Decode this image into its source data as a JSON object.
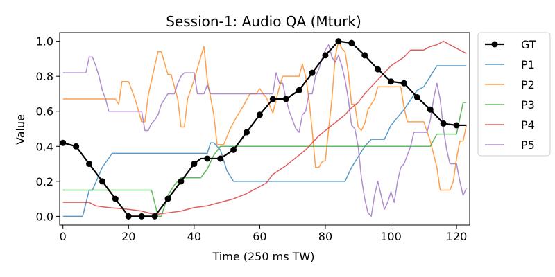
{
  "chart_data": {
    "type": "line",
    "title": "Session-1: Audio QA (Mturk)",
    "xlabel": "Time (250 ms TW)",
    "ylabel": "Value",
    "xlim": [
      -1,
      124
    ],
    "ylim": [
      -0.05,
      1.05
    ],
    "xticks": [
      0,
      20,
      40,
      60,
      80,
      100,
      120
    ],
    "yticks": [
      0.0,
      0.2,
      0.4,
      0.6,
      0.8,
      1.0
    ],
    "xtick_labels": [
      "0",
      "20",
      "40",
      "60",
      "80",
      "100",
      "120"
    ],
    "ytick_labels": [
      "0.0",
      "0.2",
      "0.4",
      "0.6",
      "0.8",
      "1.0"
    ],
    "grid": false,
    "legend_position": "outside-right",
    "series": [
      {
        "name": "GT",
        "color": "#000000",
        "markers": true,
        "points": [
          [
            0,
            0.42
          ],
          [
            4,
            0.4
          ],
          [
            8,
            0.3
          ],
          [
            12,
            0.2
          ],
          [
            16,
            0.1
          ],
          [
            20,
            0.0
          ],
          [
            24,
            0.0
          ],
          [
            28,
            0.0
          ],
          [
            32,
            0.1
          ],
          [
            36,
            0.2
          ],
          [
            40,
            0.3
          ],
          [
            42,
            0.33
          ],
          [
            44,
            0.33
          ],
          [
            48,
            0.33
          ],
          [
            52,
            0.38
          ],
          [
            56,
            0.48
          ],
          [
            60,
            0.58
          ],
          [
            64,
            0.67
          ],
          [
            68,
            0.67
          ],
          [
            72,
            0.72
          ],
          [
            76,
            0.82
          ],
          [
            80,
            0.92
          ],
          [
            84,
            1.0
          ],
          [
            88,
            0.99
          ],
          [
            92,
            0.92
          ],
          [
            96,
            0.84
          ],
          [
            100,
            0.77
          ],
          [
            104,
            0.76
          ],
          [
            108,
            0.68
          ],
          [
            112,
            0.61
          ],
          [
            116,
            0.53
          ],
          [
            120,
            0.52
          ],
          [
            123,
            0.52
          ]
        ],
        "marker_x": [
          0,
          4,
          8,
          12,
          16,
          20,
          24,
          28,
          32,
          36,
          40,
          44,
          48,
          52,
          56,
          60,
          64,
          68,
          72,
          76,
          80,
          84,
          88,
          92,
          96,
          100,
          104,
          108,
          112,
          116,
          120
        ]
      },
      {
        "name": "P1",
        "color": "#1f77b4",
        "markers": false,
        "points": [
          [
            0,
            0.0
          ],
          [
            6,
            0.0
          ],
          [
            8,
            0.15
          ],
          [
            9,
            0.15
          ],
          [
            12,
            0.28
          ],
          [
            15,
            0.36
          ],
          [
            30,
            0.36
          ],
          [
            44,
            0.36
          ],
          [
            45,
            0.42
          ],
          [
            46,
            0.42
          ],
          [
            48,
            0.38
          ],
          [
            50,
            0.26
          ],
          [
            52,
            0.2
          ],
          [
            70,
            0.2
          ],
          [
            80,
            0.2
          ],
          [
            86,
            0.2
          ],
          [
            88,
            0.28
          ],
          [
            92,
            0.4
          ],
          [
            94,
            0.44
          ],
          [
            98,
            0.44
          ],
          [
            100,
            0.52
          ],
          [
            104,
            0.61
          ],
          [
            108,
            0.72
          ],
          [
            110,
            0.74
          ],
          [
            112,
            0.8
          ],
          [
            114,
            0.86
          ],
          [
            123,
            0.86
          ]
        ]
      },
      {
        "name": "P2",
        "color": "#ff7f0e",
        "markers": false,
        "points": [
          [
            0,
            0.67
          ],
          [
            14,
            0.67
          ],
          [
            16,
            0.67
          ],
          [
            17,
            0.64
          ],
          [
            18,
            0.77
          ],
          [
            20,
            0.77
          ],
          [
            22,
            0.67
          ],
          [
            24,
            0.54
          ],
          [
            25,
            0.54
          ],
          [
            26,
            0.69
          ],
          [
            28,
            0.86
          ],
          [
            29,
            0.94
          ],
          [
            30,
            0.94
          ],
          [
            32,
            0.81
          ],
          [
            33,
            0.81
          ],
          [
            35,
            0.67
          ],
          [
            36,
            0.51
          ],
          [
            37,
            0.51
          ],
          [
            38,
            0.67
          ],
          [
            40,
            0.78
          ],
          [
            42,
            0.91
          ],
          [
            43,
            0.97
          ],
          [
            44,
            0.78
          ],
          [
            46,
            0.58
          ],
          [
            47,
            0.41
          ],
          [
            49,
            0.41
          ],
          [
            51,
            0.5
          ],
          [
            53,
            0.57
          ],
          [
            55,
            0.63
          ],
          [
            57,
            0.7
          ],
          [
            59,
            0.7
          ],
          [
            60,
            0.73
          ],
          [
            61,
            0.7
          ],
          [
            62,
            0.68
          ],
          [
            64,
            0.59
          ],
          [
            66,
            0.74
          ],
          [
            67,
            0.8
          ],
          [
            72,
            0.8
          ],
          [
            73,
            0.87
          ],
          [
            74,
            0.8
          ],
          [
            75,
            0.67
          ],
          [
            76,
            0.49
          ],
          [
            77,
            0.28
          ],
          [
            78,
            0.28
          ],
          [
            79,
            0.31
          ],
          [
            80,
            0.32
          ],
          [
            82,
            0.67
          ],
          [
            83,
            0.91
          ],
          [
            84,
            1.0
          ],
          [
            85,
            0.96
          ],
          [
            86,
            0.94
          ],
          [
            87,
            0.82
          ],
          [
            88,
            0.64
          ],
          [
            89,
            0.64
          ],
          [
            90,
            0.51
          ],
          [
            91,
            0.49
          ],
          [
            92,
            0.53
          ],
          [
            93,
            0.61
          ],
          [
            95,
            0.67
          ],
          [
            96,
            0.74
          ],
          [
            102,
            0.74
          ],
          [
            103,
            0.74
          ],
          [
            104,
            0.62
          ],
          [
            105,
            0.54
          ],
          [
            106,
            0.54
          ],
          [
            108,
            0.54
          ],
          [
            110,
            0.54
          ],
          [
            112,
            0.43
          ],
          [
            114,
            0.28
          ],
          [
            115,
            0.15
          ],
          [
            118,
            0.15
          ],
          [
            119,
            0.2
          ],
          [
            120,
            0.33
          ],
          [
            121,
            0.43
          ],
          [
            122,
            0.43
          ],
          [
            123,
            0.52
          ]
        ]
      },
      {
        "name": "P3",
        "color": "#2ca02c",
        "markers": false,
        "points": [
          [
            0,
            0.15
          ],
          [
            27,
            0.15
          ],
          [
            29,
            0.0
          ],
          [
            30,
            0.0
          ],
          [
            32,
            0.12
          ],
          [
            34,
            0.18
          ],
          [
            36,
            0.22
          ],
          [
            38,
            0.22
          ],
          [
            42,
            0.22
          ],
          [
            44,
            0.27
          ],
          [
            46,
            0.35
          ],
          [
            48,
            0.4
          ],
          [
            60,
            0.4
          ],
          [
            80,
            0.4
          ],
          [
            100,
            0.4
          ],
          [
            112,
            0.4
          ],
          [
            114,
            0.47
          ],
          [
            120,
            0.47
          ],
          [
            122,
            0.65
          ],
          [
            123,
            0.65
          ]
        ]
      },
      {
        "name": "P4",
        "color": "#d62728",
        "markers": false,
        "points": [
          [
            0,
            0.08
          ],
          [
            8,
            0.08
          ],
          [
            10,
            0.06
          ],
          [
            14,
            0.05
          ],
          [
            20,
            0.04
          ],
          [
            24,
            0.03
          ],
          [
            28,
            0.01
          ],
          [
            32,
            0.02
          ],
          [
            36,
            0.03
          ],
          [
            40,
            0.05
          ],
          [
            44,
            0.06
          ],
          [
            48,
            0.08
          ],
          [
            52,
            0.1
          ],
          [
            56,
            0.13
          ],
          [
            58,
            0.15
          ],
          [
            60,
            0.17
          ],
          [
            62,
            0.19
          ],
          [
            64,
            0.24
          ],
          [
            68,
            0.29
          ],
          [
            72,
            0.35
          ],
          [
            74,
            0.38
          ],
          [
            76,
            0.42
          ],
          [
            78,
            0.46
          ],
          [
            80,
            0.49
          ],
          [
            84,
            0.55
          ],
          [
            86,
            0.58
          ],
          [
            88,
            0.62
          ],
          [
            90,
            0.65
          ],
          [
            92,
            0.7
          ],
          [
            94,
            0.74
          ],
          [
            96,
            0.78
          ],
          [
            98,
            0.82
          ],
          [
            100,
            0.86
          ],
          [
            104,
            0.91
          ],
          [
            106,
            0.95
          ],
          [
            110,
            0.95
          ],
          [
            112,
            0.97
          ],
          [
            114,
            0.98
          ],
          [
            116,
            1.0
          ],
          [
            117,
            0.99
          ],
          [
            120,
            0.96
          ],
          [
            123,
            0.93
          ]
        ]
      },
      {
        "name": "P5",
        "color": "#9467bd",
        "markers": false,
        "points": [
          [
            0,
            0.82
          ],
          [
            7,
            0.82
          ],
          [
            8,
            0.91
          ],
          [
            9,
            0.91
          ],
          [
            10,
            0.86
          ],
          [
            11,
            0.8
          ],
          [
            12,
            0.72
          ],
          [
            13,
            0.67
          ],
          [
            14,
            0.6
          ],
          [
            24,
            0.6
          ],
          [
            25,
            0.49
          ],
          [
            26,
            0.49
          ],
          [
            27,
            0.53
          ],
          [
            28,
            0.55
          ],
          [
            29,
            0.58
          ],
          [
            30,
            0.64
          ],
          [
            31,
            0.67
          ],
          [
            32,
            0.7
          ],
          [
            34,
            0.7
          ],
          [
            35,
            0.76
          ],
          [
            36,
            0.8
          ],
          [
            37,
            0.82
          ],
          [
            38,
            0.82
          ],
          [
            40,
            0.82
          ],
          [
            41,
            0.7
          ],
          [
            43,
            0.7
          ],
          [
            44,
            0.75
          ],
          [
            45,
            0.7
          ],
          [
            60,
            0.7
          ],
          [
            64,
            0.7
          ],
          [
            65,
            0.82
          ],
          [
            66,
            0.76
          ],
          [
            67,
            0.76
          ],
          [
            68,
            0.67
          ],
          [
            69,
            0.6
          ],
          [
            70,
            0.55
          ],
          [
            71,
            0.5
          ],
          [
            72,
            0.48
          ],
          [
            73,
            0.58
          ],
          [
            74,
            0.6
          ],
          [
            75,
            0.7
          ],
          [
            76,
            0.7
          ],
          [
            77,
            0.8
          ],
          [
            78,
            0.84
          ],
          [
            79,
            0.9
          ],
          [
            80,
            0.95
          ],
          [
            81,
            0.98
          ],
          [
            82,
            0.91
          ],
          [
            83,
            0.88
          ],
          [
            84,
            0.92
          ],
          [
            85,
            0.86
          ],
          [
            86,
            0.78
          ],
          [
            87,
            0.67
          ],
          [
            88,
            0.52
          ],
          [
            89,
            0.5
          ],
          [
            90,
            0.4
          ],
          [
            91,
            0.22
          ],
          [
            92,
            0.1
          ],
          [
            93,
            0.02
          ],
          [
            94,
            0.0
          ],
          [
            95,
            0.12
          ],
          [
            96,
            0.2
          ],
          [
            97,
            0.12
          ],
          [
            98,
            0.04
          ],
          [
            99,
            0.08
          ],
          [
            100,
            0.14
          ],
          [
            101,
            0.08
          ],
          [
            102,
            0.2
          ],
          [
            103,
            0.28
          ],
          [
            104,
            0.3
          ],
          [
            105,
            0.35
          ],
          [
            106,
            0.4
          ],
          [
            107,
            0.48
          ],
          [
            111,
            0.48
          ],
          [
            112,
            0.55
          ],
          [
            113,
            0.67
          ],
          [
            114,
            0.76
          ],
          [
            115,
            0.67
          ],
          [
            116,
            0.5
          ],
          [
            117,
            0.38
          ],
          [
            118,
            0.3
          ],
          [
            119,
            0.3
          ],
          [
            120,
            0.3
          ],
          [
            121,
            0.2
          ],
          [
            122,
            0.12
          ],
          [
            123,
            0.16
          ]
        ]
      }
    ]
  }
}
